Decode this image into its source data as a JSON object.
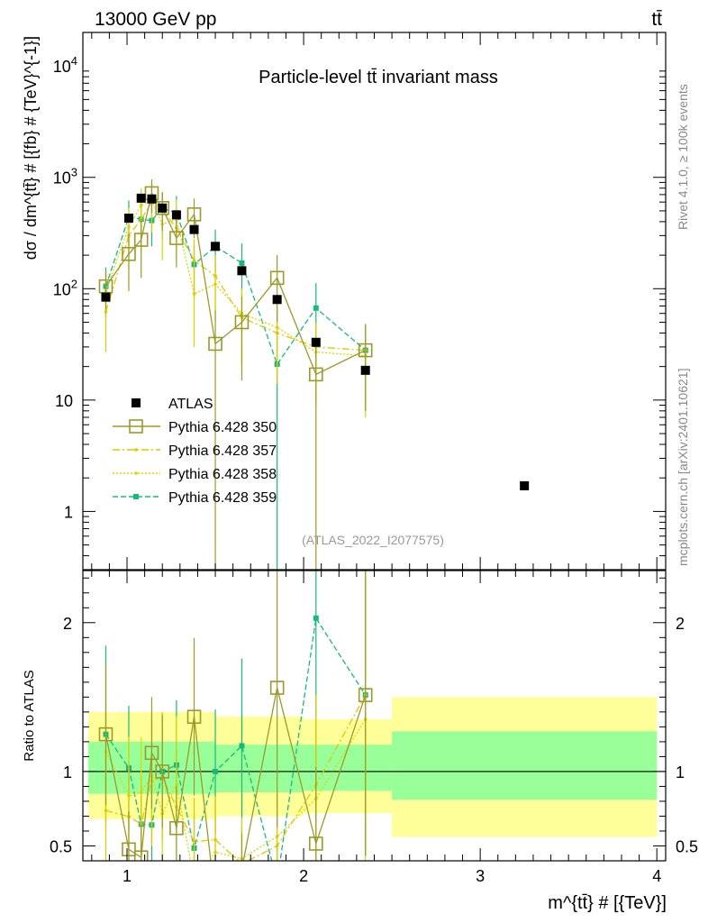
{
  "header": {
    "left": "13000 GeV pp",
    "right": "tt̄"
  },
  "side_labels": {
    "rivet": "Rivet 4.1.0, ≥ 100k events",
    "mcplots": "mcplots.cern.ch [arXiv:2401.10621]"
  },
  "chart_data": {
    "type": "scatter",
    "title": "Particle-level tt̄ invariant mass",
    "analysis_id": "(ATLAS_2022_I2077575)",
    "xlabel": "m^{tt̄} # [{TeV}]",
    "ylabel": "dσ / dm^{tt̄} # [{fb} # {TeV}^{-1}]",
    "ratio_ylabel": "Ratio to ATLAS",
    "xlim": [
      0.75,
      4.05
    ],
    "ylim": [
      0.3,
      20000
    ],
    "ratio_ylim": [
      0.4,
      2.35
    ],
    "x_ticks": [
      1,
      2,
      3,
      4
    ],
    "x_tick_labels": [
      "1",
      "2",
      "3",
      "4"
    ],
    "y_ticks": [
      1,
      10,
      100,
      1000,
      10000
    ],
    "y_tick_labels": [
      "1",
      "10",
      "10^2",
      "10^3",
      "10^4"
    ],
    "ratio_ticks": [
      0.5,
      1,
      2
    ],
    "ratio_tick_labels": [
      "0.5",
      "1",
      "2"
    ],
    "log_y": true,
    "legend_position": "bottom-left",
    "data": {
      "name": "ATLAS",
      "x": [
        0.88,
        1.01,
        1.08,
        1.14,
        1.2,
        1.28,
        1.38,
        1.5,
        1.65,
        1.85,
        2.07,
        2.35,
        3.25
      ],
      "y": [
        84,
        430,
        650,
        640,
        530,
        460,
        340,
        240,
        145,
        80,
        33,
        18.5,
        1.7
      ]
    },
    "bands": [
      {
        "xlo": 0.78,
        "xhi": 1.5,
        "tot_lo": 0.68,
        "tot_hi": 1.4,
        "stat_lo": 0.85,
        "stat_hi": 1.2
      },
      {
        "xlo": 1.5,
        "xhi": 2.0,
        "tot_lo": 0.7,
        "tot_hi": 1.37,
        "stat_lo": 0.86,
        "stat_hi": 1.18
      },
      {
        "xlo": 2.0,
        "xhi": 2.5,
        "tot_lo": 0.72,
        "tot_hi": 1.35,
        "stat_lo": 0.87,
        "stat_hi": 1.18
      },
      {
        "xlo": 2.5,
        "xhi": 4.0,
        "tot_lo": 0.56,
        "tot_hi": 1.5,
        "stat_lo": 0.81,
        "stat_hi": 1.27
      }
    ],
    "series": [
      {
        "name": "Pythia 6.428 350",
        "color": "#9a9a2a",
        "dash": "",
        "marker": "open-square",
        "x": [
          0.88,
          1.01,
          1.08,
          1.14,
          1.2,
          1.28,
          1.38,
          1.5,
          1.65,
          1.85,
          2.07,
          2.35
        ],
        "y": [
          105,
          205,
          275,
          720,
          530,
          285,
          465,
          32,
          50,
          125,
          17,
          28
        ],
        "err": [
          40,
          110,
          150,
          240,
          200,
          130,
          180,
          32,
          35,
          75,
          17,
          20
        ]
      },
      {
        "name": "Pythia 6.428 357",
        "color": "#e0c800",
        "dash": "8,3,2,3",
        "marker": "dot",
        "x": [
          0.88,
          1.01,
          1.08,
          1.14,
          1.2,
          1.28,
          1.38,
          1.5,
          1.65,
          1.85,
          2.07,
          2.35
        ],
        "y": [
          62,
          300,
          420,
          600,
          510,
          350,
          180,
          130,
          55,
          40,
          30,
          28
        ],
        "err": [
          35,
          150,
          210,
          280,
          230,
          180,
          100,
          70,
          35,
          26,
          20,
          20
        ]
      },
      {
        "name": "Pythia 6.428 358",
        "color": "#d8d800",
        "dash": "2,2",
        "marker": "dot",
        "x": [
          0.88,
          1.01,
          1.08,
          1.14,
          1.2,
          1.28,
          1.38,
          1.5,
          1.65,
          1.85,
          2.07,
          2.35
        ],
        "y": [
          95,
          360,
          560,
          620,
          380,
          420,
          90,
          110,
          60,
          45,
          27,
          25
        ],
        "err": [
          45,
          170,
          240,
          280,
          200,
          210,
          60,
          60,
          40,
          28,
          18,
          18
        ]
      },
      {
        "name": "Pythia 6.428 359",
        "color": "#1ab87a",
        "dash": "6,3",
        "marker": "filled-square",
        "x": [
          0.88,
          1.01,
          1.08,
          1.14,
          1.2,
          1.28,
          1.38,
          1.5,
          1.65,
          1.85,
          2.07,
          2.35
        ],
        "y": [
          105,
          440,
          420,
          410,
          530,
          480,
          165,
          240,
          170,
          21,
          67,
          28
        ],
        "err": [
          50,
          180,
          170,
          170,
          210,
          200,
          80,
          100,
          85,
          21,
          45,
          20
        ]
      }
    ]
  }
}
